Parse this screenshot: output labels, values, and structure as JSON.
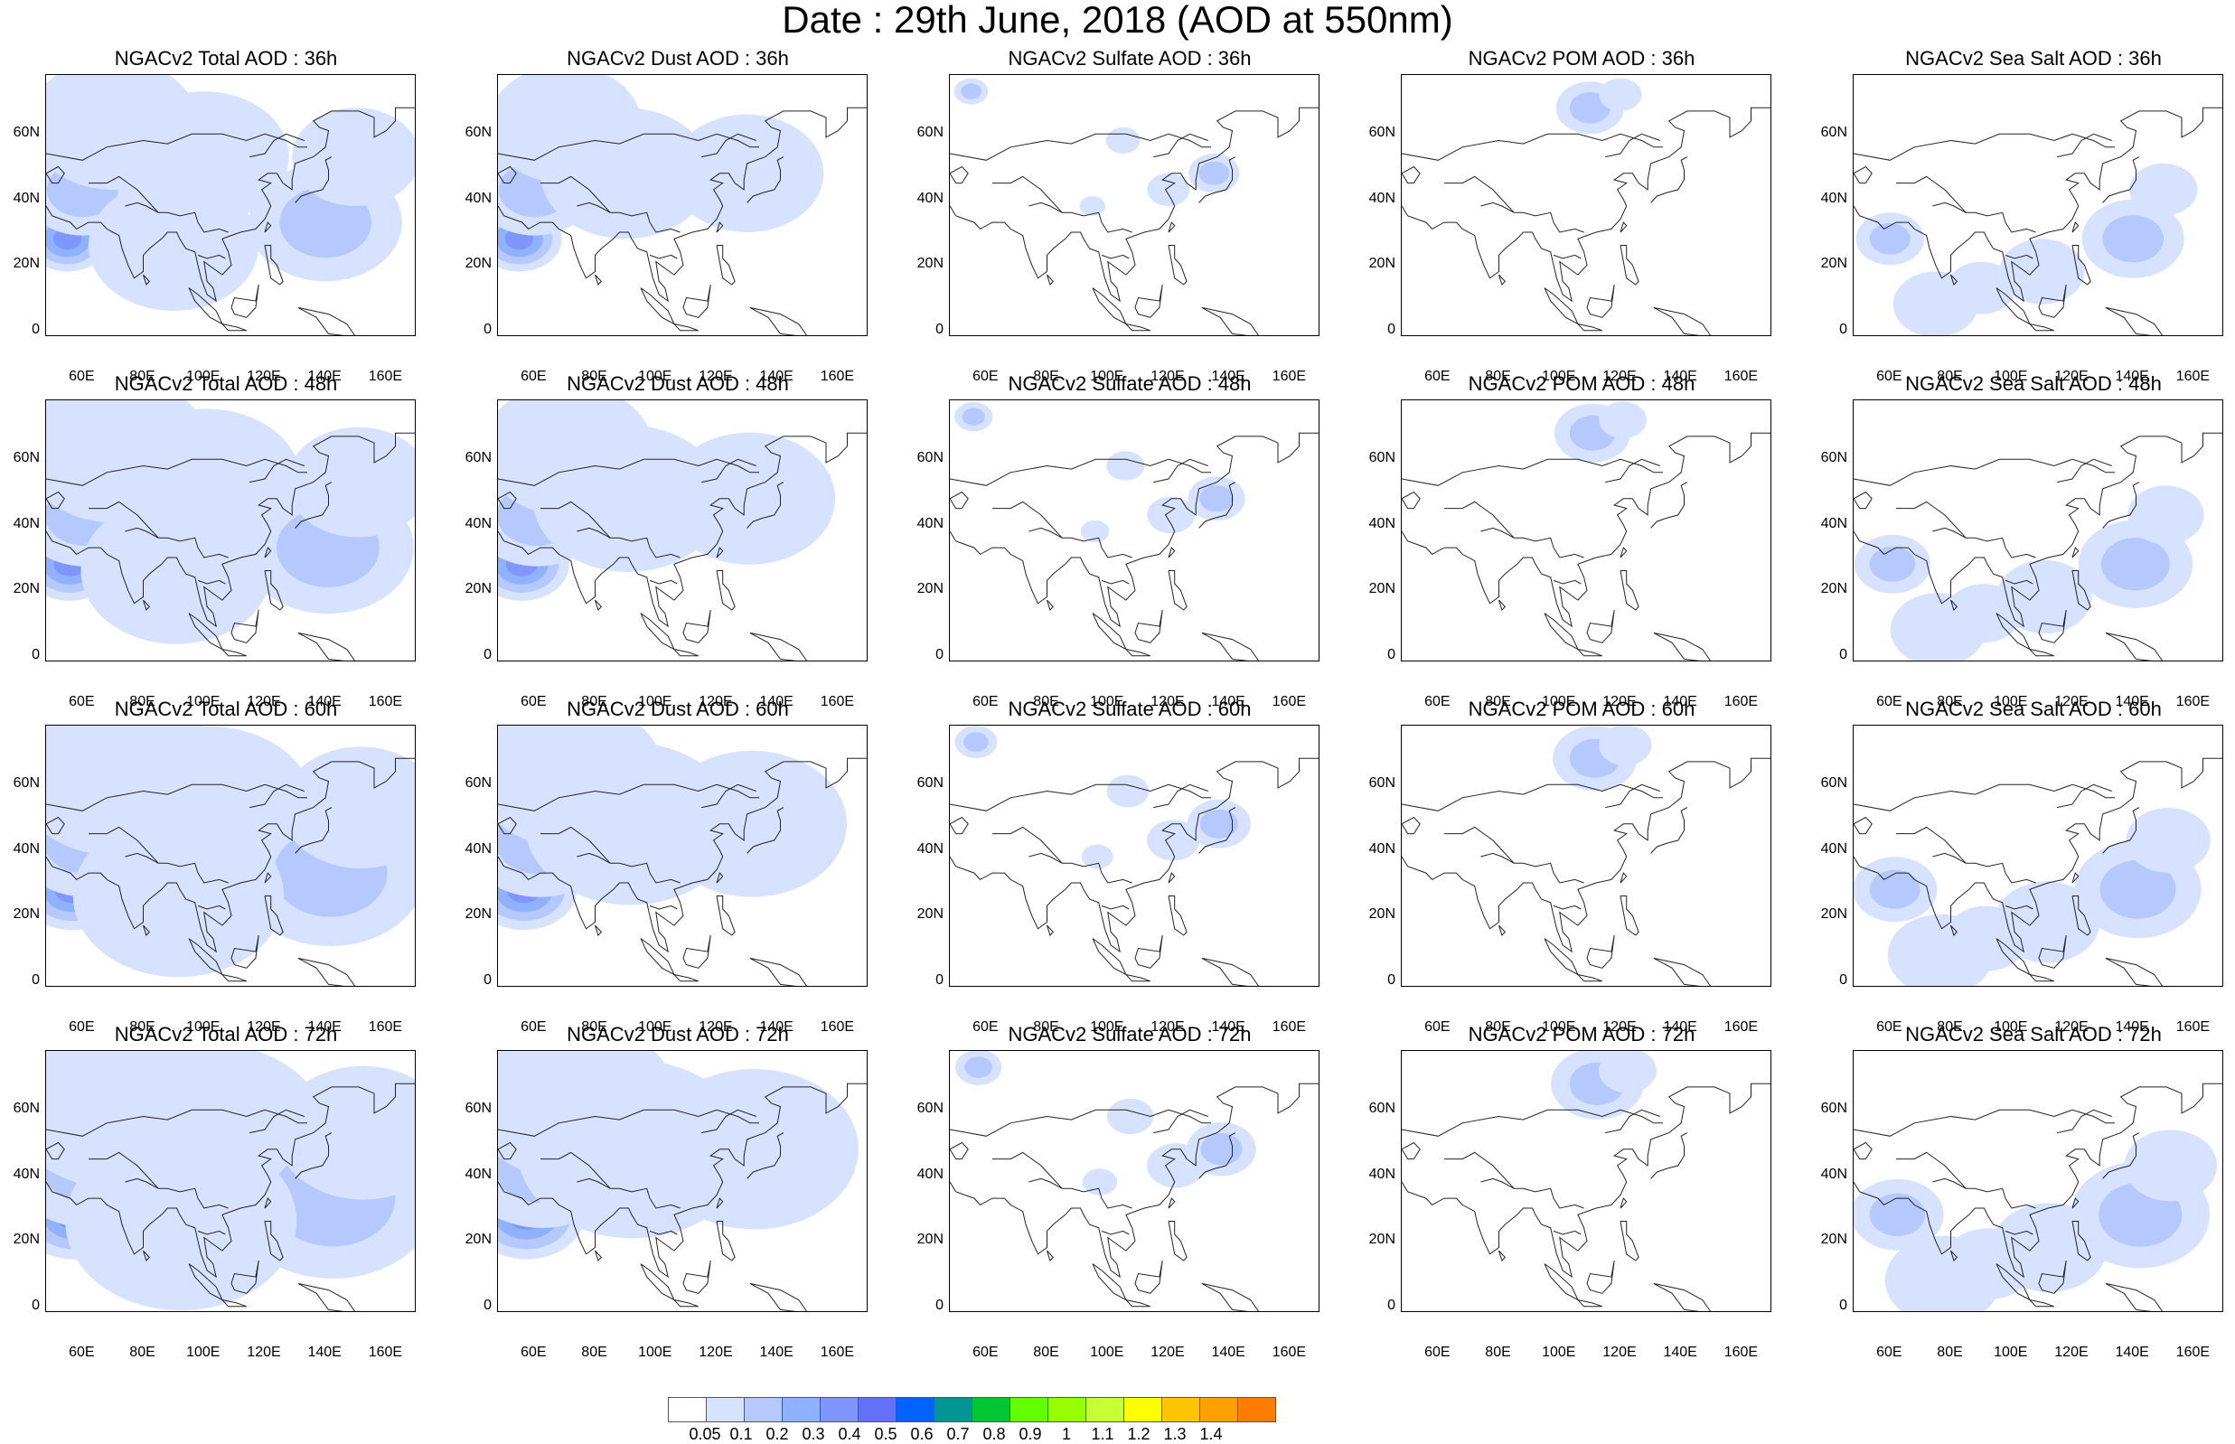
{
  "title": "Date : 29th June, 2018 (AOD at 550nm)",
  "map_axes": {
    "lat_ticks": [
      "60N",
      "40N",
      "20N",
      "0"
    ],
    "lon_ticks": [
      "60E",
      "80E",
      "100E",
      "120E",
      "140E",
      "160E"
    ],
    "lat_range": [
      -10,
      70
    ],
    "lon_range": [
      48,
      170
    ]
  },
  "panels": [
    [
      "NGACv2 Total AOD : 36h",
      "NGACv2 Dust AOD : 36h",
      "NGACv2 Sulfate AOD : 36h",
      "NGACv2 POM AOD : 36h",
      "NGACv2 Sea Salt AOD : 36h"
    ],
    [
      "NGACv2 Total AOD : 48h",
      "NGACv2 Dust AOD : 48h",
      "NGACv2 Sulfate AOD : 48h",
      "NGACv2 POM AOD : 48h",
      "NGACv2 Sea Salt AOD : 48h"
    ],
    [
      "NGACv2 Total AOD : 60h",
      "NGACv2 Dust AOD : 60h",
      "NGACv2 Sulfate AOD : 60h",
      "NGACv2 POM AOD : 60h",
      "NGACv2 Sea Salt AOD : 60h"
    ],
    [
      "NGACv2 Total AOD : 72h",
      "NGACv2 Dust AOD : 72h",
      "NGACv2 Sulfate AOD : 72h",
      "NGACv2 POM AOD : 72h",
      "NGACv2 Sea Salt  AOD : 72h"
    ]
  ],
  "colorbar": {
    "labels": [
      "0.05",
      "0.1",
      "0.2",
      "0.3",
      "0.4",
      "0.5",
      "0.6",
      "0.7",
      "0.8",
      "0.9",
      "1",
      "1.1",
      "1.2",
      "1.3",
      "1.4"
    ],
    "colors": [
      "#ffffff",
      "#d6e2ff",
      "#b5c9ff",
      "#8eb2ff",
      "#7f96ff",
      "#6370f8",
      "#0063ff",
      "#009696",
      "#00c633",
      "#63ff00",
      "#96ff00",
      "#c6ff33",
      "#ffff00",
      "#ffc600",
      "#ffa000",
      "#ff7c00",
      "#ff1900"
    ]
  }
}
